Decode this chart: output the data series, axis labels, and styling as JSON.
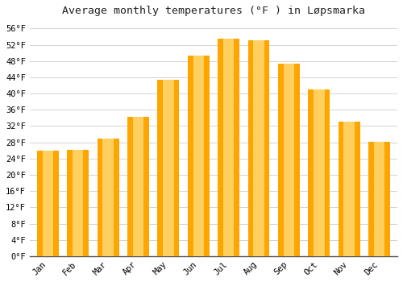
{
  "title": "Average monthly temperatures (°F ) in Løpsmarka",
  "months": [
    "Jan",
    "Feb",
    "Mar",
    "Apr",
    "May",
    "Jun",
    "Jul",
    "Aug",
    "Sep",
    "Oct",
    "Nov",
    "Dec"
  ],
  "values": [
    26.0,
    26.2,
    29.0,
    34.2,
    43.3,
    49.3,
    53.4,
    53.1,
    47.3,
    41.0,
    33.0,
    28.2
  ],
  "bar_color_outer": "#FFA500",
  "bar_color_inner": "#FFD060",
  "ylim_min": 0,
  "ylim_max": 58,
  "ytick_step": 4,
  "background_color": "#ffffff",
  "grid_color": "#cccccc",
  "title_fontsize": 9.5,
  "tick_fontsize": 7.5,
  "fig_width": 5.0,
  "fig_height": 3.5,
  "bar_width": 0.72
}
